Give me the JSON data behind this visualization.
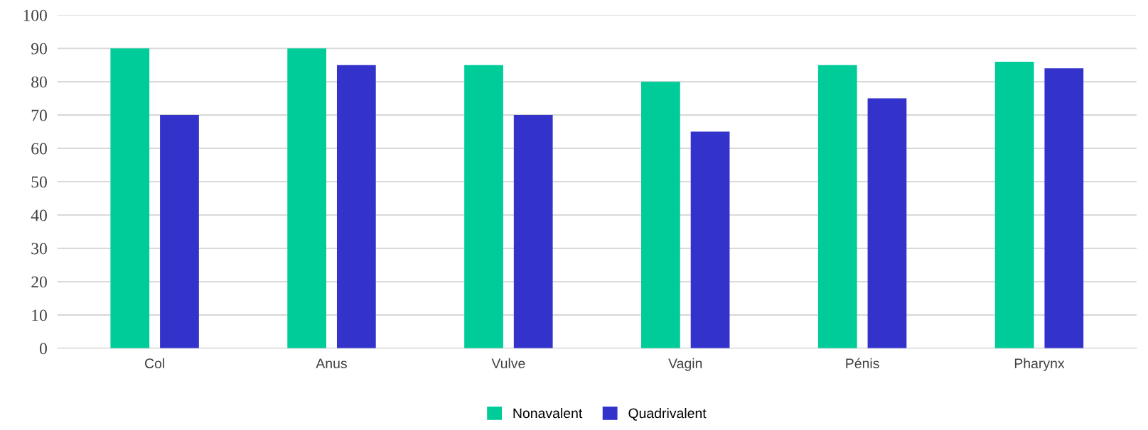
{
  "chart_data": {
    "type": "bar",
    "categories": [
      "Col",
      "Anus",
      "Vulve",
      "Vagin",
      "Pénis",
      "Pharynx"
    ],
    "series": [
      {
        "name": "Nonavalent",
        "color": "#00cc99",
        "values": [
          90,
          90,
          85,
          80,
          85,
          86
        ]
      },
      {
        "name": "Quadrivalent",
        "color": "#3333cc",
        "values": [
          70,
          85,
          70,
          65,
          75,
          84
        ]
      }
    ],
    "ylim": [
      0,
      100
    ],
    "yticks": [
      0,
      10,
      20,
      30,
      40,
      50,
      60,
      70,
      80,
      90,
      100
    ],
    "grid": "y",
    "legend": "bottom"
  }
}
